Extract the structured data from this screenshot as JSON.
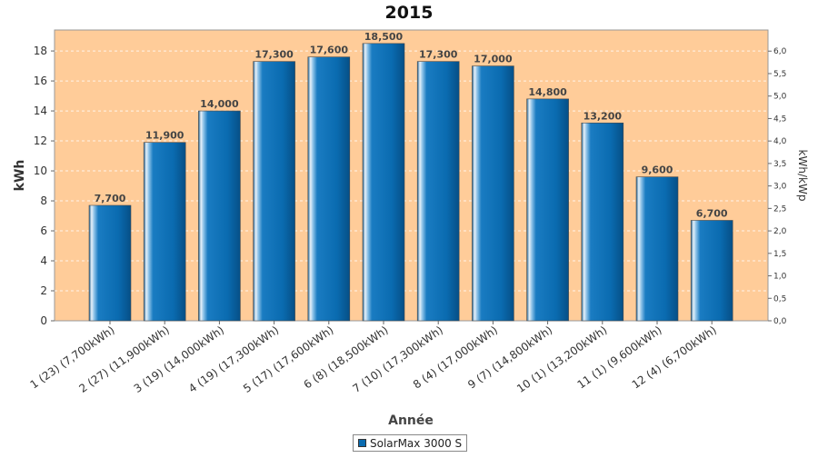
{
  "chart_data": {
    "type": "bar",
    "title": "2015",
    "xlabel": "Année",
    "ylabel": "kWh",
    "y2label": "kWh/kWp",
    "categories": [
      "1 (23)  (7,700kWh)",
      "2 (27)  (11,900kWh)",
      "3 (19)  (14,000kWh)",
      "4 (19)  (17,300kWh)",
      "5 (17)  (17,600kWh)",
      "6 (8)  (18,500kWh)",
      "7 (10)  (17,300kWh)",
      "8 (4)  (17,000kWh)",
      "9 (7)  (14,800kWh)",
      "10 (1)  (13,200kWh)",
      "11 (1)  (9,600kWh)",
      "12 (4)  (6,700kWh)"
    ],
    "series": [
      {
        "name": "SolarMax 3000 S",
        "values": [
          7.7,
          11.9,
          14.0,
          17.3,
          17.6,
          18.5,
          17.3,
          17.0,
          14.8,
          13.2,
          9.6,
          6.7
        ],
        "labels": [
          "7,700",
          "11,900",
          "14,000",
          "17,300",
          "17,600",
          "18,500",
          "17,300",
          "17,000",
          "14,800",
          "13,200",
          "9,600",
          "6,700"
        ]
      }
    ],
    "ylim": [
      0,
      19.4
    ],
    "yticks": [
      0,
      2,
      4,
      6,
      8,
      10,
      12,
      14,
      16,
      18
    ],
    "y2lim": [
      0,
      6.47
    ],
    "y2ticks": [
      "0,0",
      "0,5",
      "1,0",
      "1,5",
      "2,0",
      "2,5",
      "3,0",
      "3,5",
      "4,0",
      "4,5",
      "5,0",
      "5,5",
      "6,0"
    ],
    "grid": true,
    "legend_position": "bottom-center",
    "colors": {
      "plot_background": "#ffcc99",
      "bar": "#0a6bb0",
      "bar_dark": "#064f86",
      "bar_highlight": "#e8f2fa",
      "grid": "#ffffff"
    }
  }
}
